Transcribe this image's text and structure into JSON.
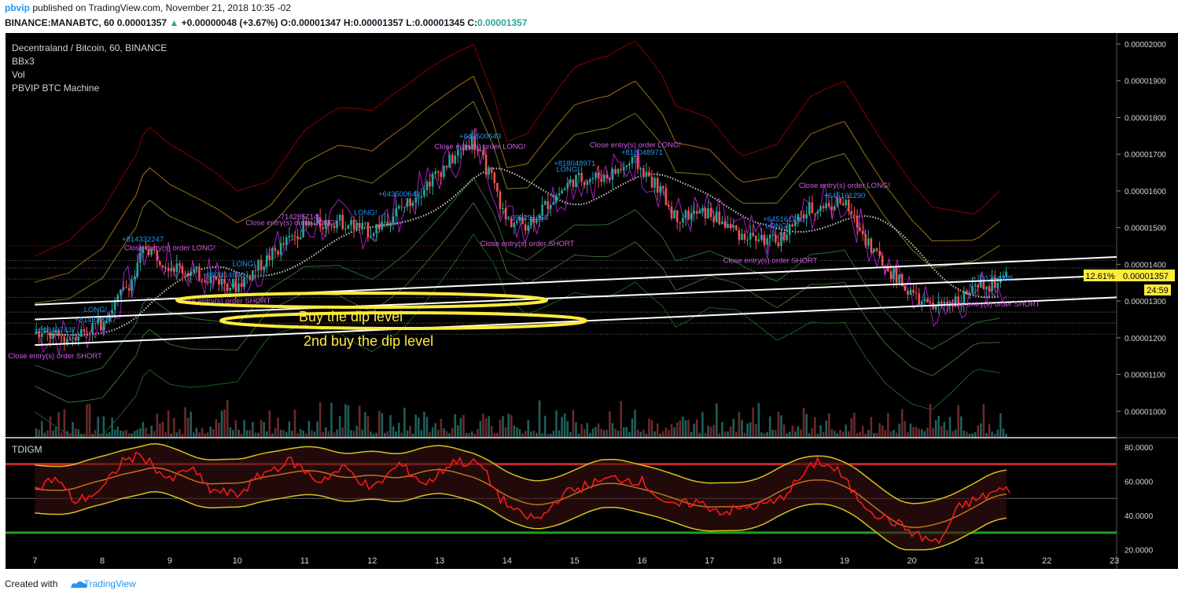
{
  "header": {
    "user": "pbvip",
    "published": "published on TradingView.com, November 21, 2018 10:35 -02",
    "symbol": "BINANCE:MANABTC, 60",
    "last": "0.00001357",
    "change": "+0.00000048 (+3.67%)",
    "o_label": "O:",
    "o_val": "0.00001347",
    "h_label": "H:",
    "h_val": "0.00001357",
    "l_label": "L:",
    "l_val": "0.00001345",
    "c_label": "C:",
    "c_val": "0.00001357"
  },
  "legend": {
    "title": "Decentraland / Bitcoin, 60, BINANCE",
    "items": [
      "BBx3",
      "Vol",
      "PBVIP BTC Machine"
    ]
  },
  "annotations": {
    "buy_dip": "Buy the dip level",
    "buy_dip2": "2nd buy the dip level"
  },
  "price_badge": {
    "percent": "12.61%",
    "price": "0.00001357",
    "timer": "24:59"
  },
  "footer": {
    "created_with": "Created with",
    "brand": "TradingView"
  },
  "colors": {
    "background": "#000000",
    "up": "#26a69a",
    "down": "#ef5350",
    "annotation": "#ffeb3b",
    "trendline": "#ffffff",
    "tdi_line": "#ff1a1a",
    "tdi_band": "#d4c21c",
    "level_high": "#c62828",
    "level_low": "#1ea01e"
  },
  "chart_data": {
    "type": "candlestick",
    "x_ticks": [
      "7",
      "8",
      "9",
      "10",
      "11",
      "12",
      "13",
      "14",
      "15",
      "16",
      "17",
      "18",
      "19",
      "20",
      "21",
      "22",
      "23"
    ],
    "x_range": [
      7,
      23.4
    ],
    "y_ticks": [
      "0.00002000",
      "0.00001900",
      "0.00001800",
      "0.00001700",
      "0.00001600",
      "0.00001500",
      "0.00001400",
      "0.00001300",
      "0.00001200",
      "0.00001100",
      "0.00001000"
    ],
    "y_range": [
      9.3e-06,
      2.03e-05
    ],
    "price_path": [
      [
        7,
        1.21e-05
      ],
      [
        7.5,
        1.2e-05
      ],
      [
        8,
        1.24e-05
      ],
      [
        8.5,
        1.37e-05
      ],
      [
        8.65,
        1.45e-05
      ],
      [
        9,
        1.4e-05
      ],
      [
        9.3,
        1.38e-05
      ],
      [
        9.7,
        1.36e-05
      ],
      [
        10,
        1.34e-05
      ],
      [
        10.5,
        1.42e-05
      ],
      [
        11,
        1.5e-05
      ],
      [
        11.5,
        1.52e-05
      ],
      [
        12,
        1.49e-05
      ],
      [
        12.5,
        1.56e-05
      ],
      [
        13,
        1.65e-05
      ],
      [
        13.5,
        1.74e-05
      ],
      [
        13.8,
        1.63e-05
      ],
      [
        14,
        1.52e-05
      ],
      [
        14.3,
        1.51e-05
      ],
      [
        14.7,
        1.58e-05
      ],
      [
        15,
        1.63e-05
      ],
      [
        15.5,
        1.64e-05
      ],
      [
        15.9,
        1.68e-05
      ],
      [
        16.3,
        1.6e-05
      ],
      [
        16.5,
        1.53e-05
      ],
      [
        17,
        1.54e-05
      ],
      [
        17.5,
        1.48e-05
      ],
      [
        18,
        1.46e-05
      ],
      [
        18.5,
        1.55e-05
      ],
      [
        19,
        1.57e-05
      ],
      [
        19.3,
        1.48e-05
      ],
      [
        19.6,
        1.4e-05
      ],
      [
        20,
        1.32e-05
      ],
      [
        20.3,
        1.28e-05
      ],
      [
        20.6,
        1.3e-05
      ],
      [
        21,
        1.33e-05
      ],
      [
        21.4,
        1.36e-05
      ]
    ],
    "trendlines": [
      {
        "x1": 7,
        "y1": 1.29e-05,
        "x2": 23.4,
        "y2": 1.42e-05
      },
      {
        "x1": 7,
        "y1": 1.25e-05,
        "x2": 23.4,
        "y2": 1.37e-05
      },
      {
        "x1": 7,
        "y1": 1.18e-05,
        "x2": 23.4,
        "y2": 1.31e-05
      }
    ],
    "signals": [
      {
        "x": 7.3,
        "text": "Close entry(s) order SHORT"
      },
      {
        "x": 7.3,
        "text": "+808407437"
      },
      {
        "x": 7.9,
        "text": "LONG!"
      },
      {
        "x": 7.9,
        "text": "+814332247"
      },
      {
        "x": 8.6,
        "text": "+814332247"
      },
      {
        "x": 9,
        "text": "Close entry(s) order LONG!"
      },
      {
        "x": 9.8,
        "text": "Close entry(s) order SHORT"
      },
      {
        "x": 9.8,
        "text": "+697314800"
      },
      {
        "x": 10.1,
        "text": "LONG!"
      },
      {
        "x": 10.8,
        "text": "Close entry(s) order LONG!"
      },
      {
        "x": 10.9,
        "text": "-714285714"
      },
      {
        "x": 11.9,
        "text": "LONG!"
      },
      {
        "x": 12.4,
        "text": "+643500643"
      },
      {
        "x": 13.6,
        "text": "+643500643"
      },
      {
        "x": 13.6,
        "text": "Close entry(s) order LONG!"
      },
      {
        "x": 14.3,
        "text": "Close entry(s) order SHORT"
      },
      {
        "x": 14.3,
        "text": "+692251655"
      },
      {
        "x": 14.9,
        "text": "LONG!"
      },
      {
        "x": 15,
        "text": "+818048971"
      },
      {
        "x": 15.9,
        "text": "Close entry(s) order LONG!"
      },
      {
        "x": 16,
        "text": "+818048971"
      },
      {
        "x": 17.9,
        "text": "Close entry(s) order SHORT"
      },
      {
        "x": 18,
        "text": "LONG!"
      },
      {
        "x": 18.1,
        "text": "+645161290"
      },
      {
        "x": 19,
        "text": "Close entry(s) order LONG!"
      },
      {
        "x": 19,
        "text": "+645161290"
      },
      {
        "x": 21.2,
        "text": "Close entry(s) order SHORT"
      },
      {
        "x": 21.2,
        "text": "+701754385"
      }
    ],
    "indicator": {
      "name": "TDIGM",
      "y_ticks": [
        "80.0000",
        "60.0000",
        "40.0000",
        "20.0000"
      ],
      "y_range": [
        18,
        85
      ],
      "upper_level": 70,
      "lower_level": 30,
      "mid_level": 50,
      "rsi_path": [
        [
          7,
          55
        ],
        [
          7.3,
          62
        ],
        [
          7.6,
          48
        ],
        [
          8,
          55
        ],
        [
          8.3,
          72
        ],
        [
          8.6,
          75
        ],
        [
          9,
          60
        ],
        [
          9.3,
          68
        ],
        [
          9.6,
          55
        ],
        [
          10,
          52
        ],
        [
          10.4,
          65
        ],
        [
          10.8,
          72
        ],
        [
          11.2,
          60
        ],
        [
          11.6,
          68
        ],
        [
          12,
          55
        ],
        [
          12.4,
          70
        ],
        [
          12.8,
          58
        ],
        [
          13.2,
          72
        ],
        [
          13.6,
          70
        ],
        [
          13.9,
          50
        ],
        [
          14.2,
          40
        ],
        [
          14.5,
          38
        ],
        [
          14.8,
          52
        ],
        [
          15.2,
          58
        ],
        [
          15.6,
          62
        ],
        [
          16,
          60
        ],
        [
          16.4,
          45
        ],
        [
          16.8,
          48
        ],
        [
          17.2,
          42
        ],
        [
          17.6,
          45
        ],
        [
          18,
          48
        ],
        [
          18.3,
          60
        ],
        [
          18.6,
          72
        ],
        [
          18.9,
          66
        ],
        [
          19.2,
          50
        ],
        [
          19.5,
          40
        ],
        [
          19.8,
          35
        ],
        [
          20.1,
          28
        ],
        [
          20.4,
          24
        ],
        [
          20.7,
          45
        ],
        [
          21,
          50
        ],
        [
          21.3,
          55
        ],
        [
          21.5,
          54
        ]
      ]
    }
  }
}
